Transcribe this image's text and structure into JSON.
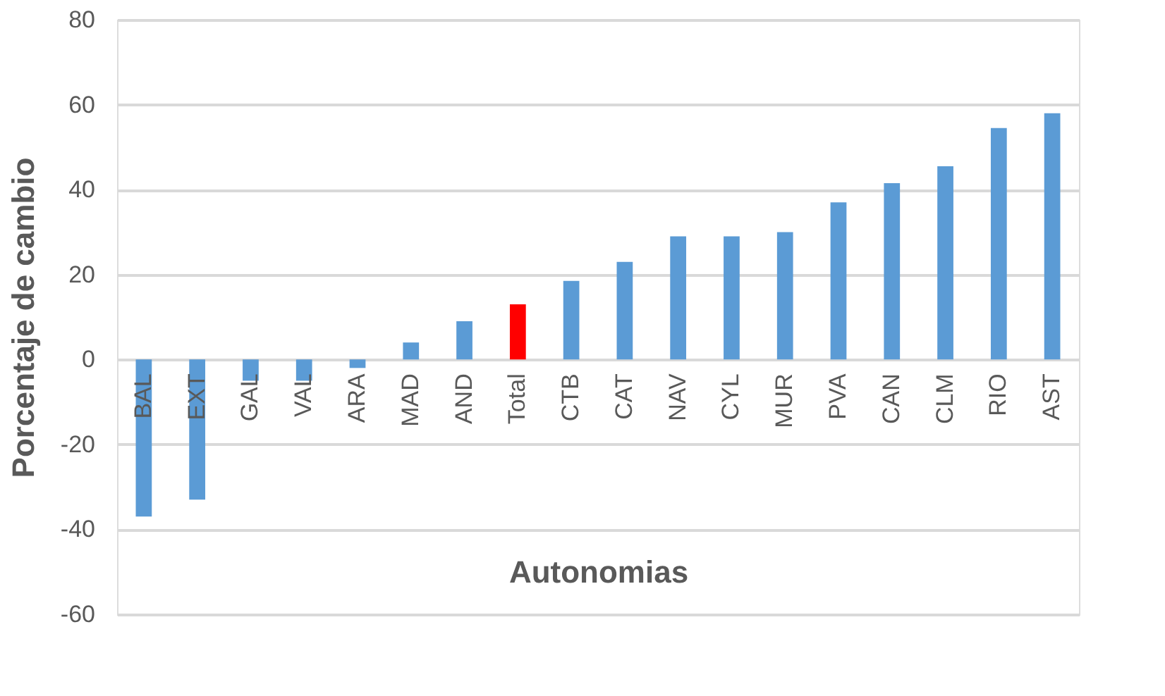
{
  "chart_data": {
    "type": "bar",
    "xlabel": "Autonomias",
    "ylabel": "Porcentaje de cambio",
    "categories": [
      "BAL",
      "EXT",
      "GAL",
      "VAL",
      "ARA",
      "MAD",
      "AND",
      "Total",
      "CTB",
      "CAT",
      "NAV",
      "CYL",
      "MUR",
      "PVA",
      "CAN",
      "CLM",
      "RIO",
      "AST"
    ],
    "values": [
      -37,
      -33,
      -5,
      -5,
      -2,
      4,
      9,
      13,
      18.5,
      23,
      29,
      29,
      30,
      37,
      41.5,
      45.5,
      54.5,
      58
    ],
    "colors": [
      "#5b9bd5",
      "#5b9bd5",
      "#5b9bd5",
      "#5b9bd5",
      "#5b9bd5",
      "#5b9bd5",
      "#5b9bd5",
      "#ff0000",
      "#5b9bd5",
      "#5b9bd5",
      "#5b9bd5",
      "#5b9bd5",
      "#5b9bd5",
      "#5b9bd5",
      "#5b9bd5",
      "#5b9bd5",
      "#5b9bd5",
      "#5b9bd5"
    ],
    "ylim": [
      -60,
      80
    ],
    "yticks": [
      -60,
      -40,
      -20,
      0,
      20,
      40,
      60,
      80
    ],
    "grid": "y"
  }
}
